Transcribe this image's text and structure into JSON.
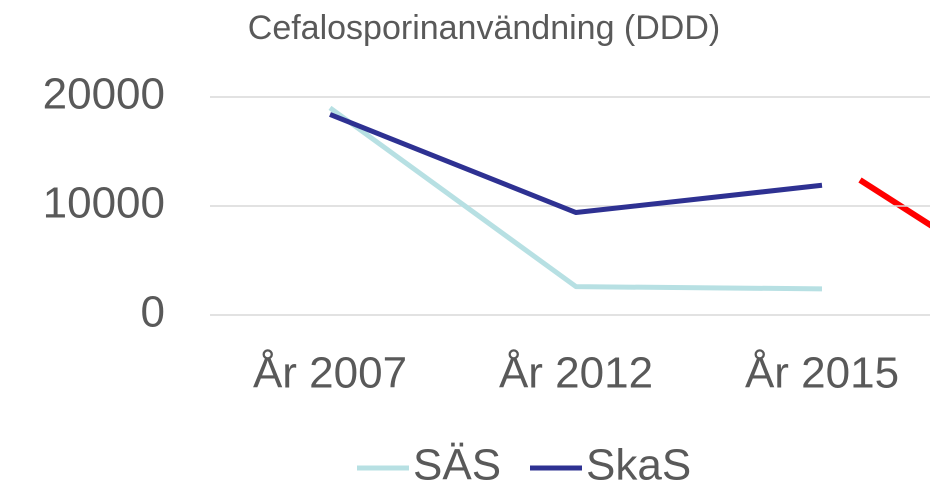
{
  "chart_data": {
    "type": "line",
    "title": "Cefalosporinanvändning (DDD)",
    "categories": [
      "År 2007",
      "År 2012",
      "År 2015"
    ],
    "series": [
      {
        "name": "SÄS",
        "color": "#b7e0e3",
        "values": [
          19000,
          2600,
          2400
        ]
      },
      {
        "name": "SkaS",
        "color": "#2e3192",
        "values": [
          18400,
          9400,
          11900
        ]
      }
    ],
    "ylim": [
      0,
      20000
    ],
    "yticks": [
      0,
      10000,
      20000
    ],
    "grid": true
  }
}
